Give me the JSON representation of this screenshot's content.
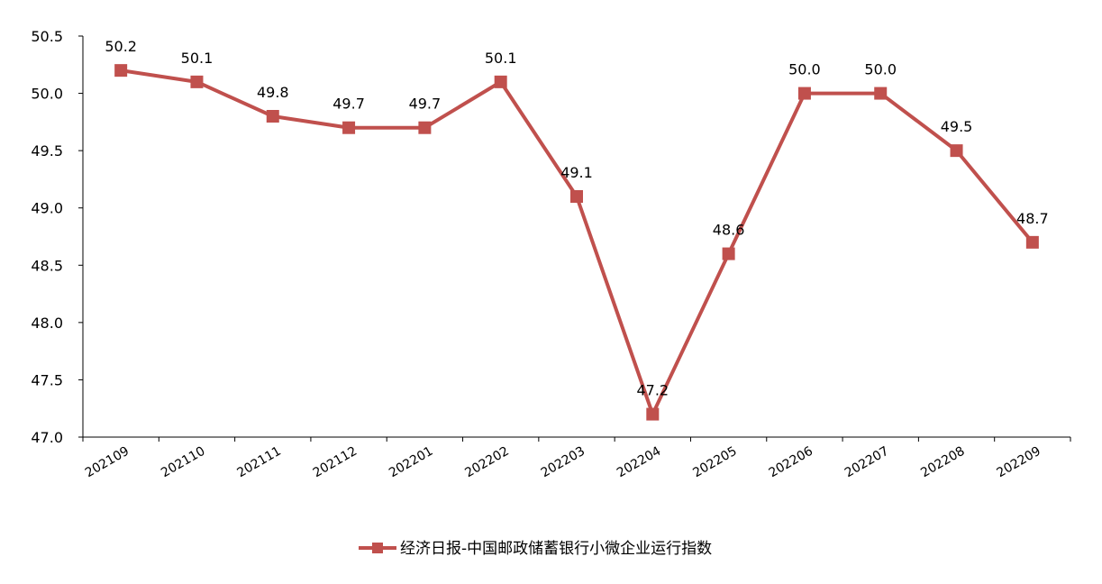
{
  "chart_data": {
    "type": "line",
    "categories": [
      "202109",
      "202110",
      "202111",
      "202112",
      "202201",
      "202202",
      "202203",
      "202204",
      "202205",
      "202206",
      "202207",
      "202208",
      "202209"
    ],
    "series": [
      {
        "name": "经济日报-中国邮政储蓄银行小微企业运行指数",
        "values": [
          50.2,
          50.1,
          49.8,
          49.7,
          49.7,
          50.1,
          49.1,
          47.2,
          48.6,
          50.0,
          50.0,
          49.5,
          48.7
        ],
        "labels": [
          "50.2",
          "50.1",
          "49.8",
          "49.7",
          "49.7",
          "50.1",
          "49.1",
          "47.2",
          "48.6",
          "50.0",
          "50.0",
          "49.5",
          "48.7"
        ],
        "color": "#C0504D",
        "marker": "square"
      }
    ],
    "title": "",
    "xlabel": "",
    "ylabel": "",
    "ylim": [
      47.0,
      50.5
    ],
    "yticks": [
      "47.0",
      "47.5",
      "48.0",
      "48.5",
      "49.0",
      "49.5",
      "50.0",
      "50.5"
    ],
    "grid": false,
    "legend_position": "bottom"
  }
}
